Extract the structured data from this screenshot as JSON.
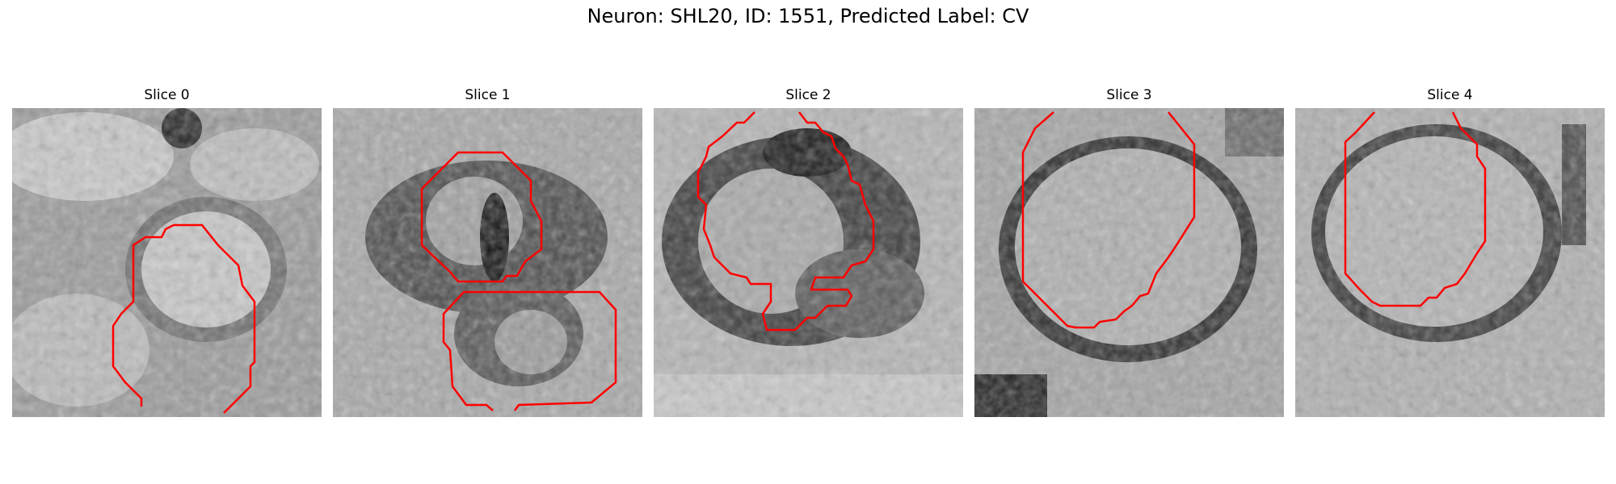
{
  "figure": {
    "title": "Neuron: SHL20, ID: 1551, Predicted Label: CV"
  },
  "panels": [
    {
      "label": "Slice 0"
    },
    {
      "label": "Slice 1"
    },
    {
      "label": "Slice 2"
    },
    {
      "label": "Slice 3"
    },
    {
      "label": "Slice 4"
    }
  ],
  "colors": {
    "contour": "#ff0000",
    "background": "#ffffff"
  }
}
